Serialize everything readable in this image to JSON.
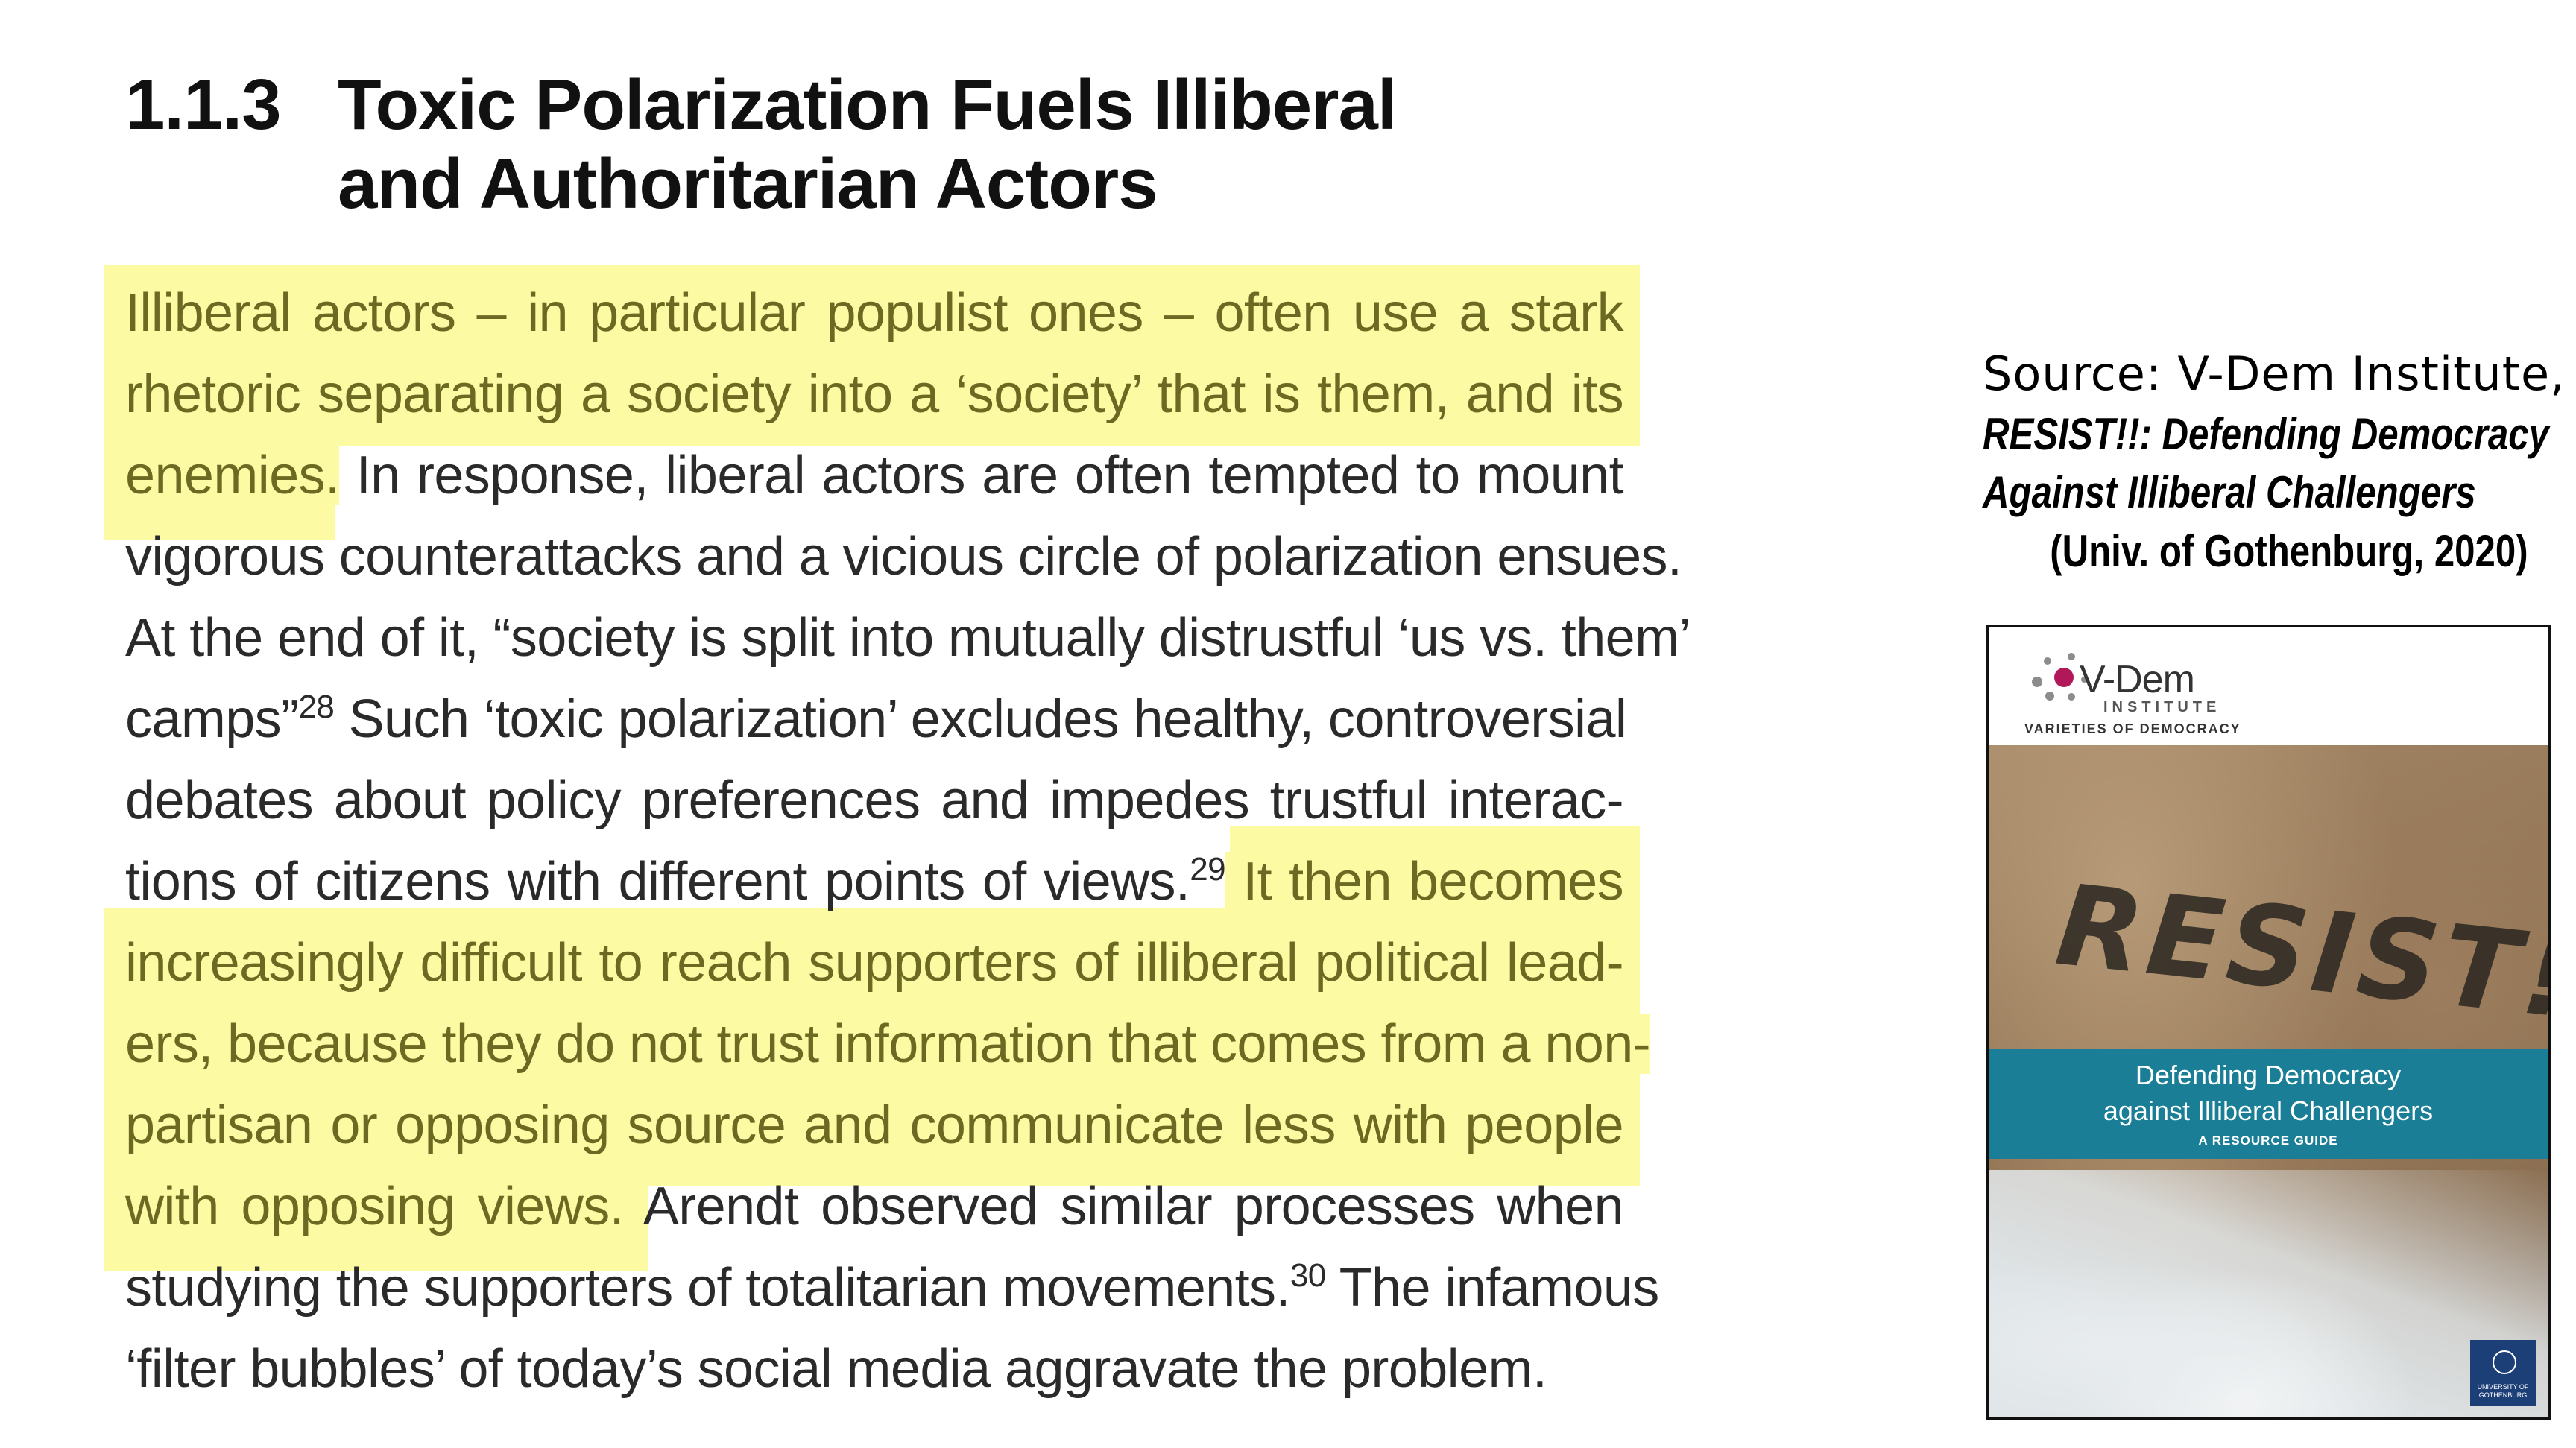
{
  "heading": {
    "number": "1.1.3",
    "title_line1": "Toxic Polarization Fuels Illiberal",
    "title_line2": "and Authoritarian Actors"
  },
  "paragraph": {
    "l1": "Illiberal actors – in particular populist ones – often use a stark",
    "l2": "rhetoric separating a society into a ‘society’ that is them, and its",
    "l3_hl": "enemies.",
    "l3_rest": " In response, liberal actors are often tempted to mount",
    "l4": "vigorous counterattacks and a vicious circle of polarization ensues.",
    "l5": "At the end of it, “society is split into mutually distrustful ‘us vs. them’",
    "l6_a": "camps”",
    "l6_sup": "28",
    "l6_b": " Such ‘toxic polarization’ excludes healthy, controversial",
    "l7": "debates about policy preferences and impedes trustful interac-",
    "l8_a": "tions of citizens with different points of views.",
    "l8_sup": "29",
    "l8_hl": " It then becomes",
    "l9": "increasingly difficult to reach supporters of illiberal political lead-",
    "l10": "ers, because they do not trust information that comes from a non-",
    "l11": "partisan or opposing source and communicate less with people",
    "l12_hl": "with opposing views.",
    "l12_rest": " Arendt observed similar processes when",
    "l13_a": "studying the supporters of totalitarian movements.",
    "l13_sup": "30",
    "l13_b": " The infamous",
    "l14": "‘filter bubbles’ of today’s social media aggravate the problem."
  },
  "source": {
    "line1": "Source: V-Dem Institute,",
    "line2": "RESIST!!: Defending Democracy",
    "line3": "Against Illiberal Challengers",
    "line4": "(Univ. of Gothenburg, 2020)"
  },
  "cover": {
    "brand": "V-Dem",
    "institute": "INSTITUTE",
    "tagline": "VARIETIES OF DEMOCRACY",
    "resist": "RESIST!!",
    "band_line1": "Defending Democracy",
    "band_line2": "against Illiberal Challengers",
    "band_line3": "A RESOURCE GUIDE",
    "univ": "UNIVERSITY OF GOTHENBURG"
  },
  "colors": {
    "highlight": "#fdfaa4",
    "highlight_text": "#6c6a22",
    "band": "#1a7f96",
    "logo_accent": "#b0185a"
  }
}
